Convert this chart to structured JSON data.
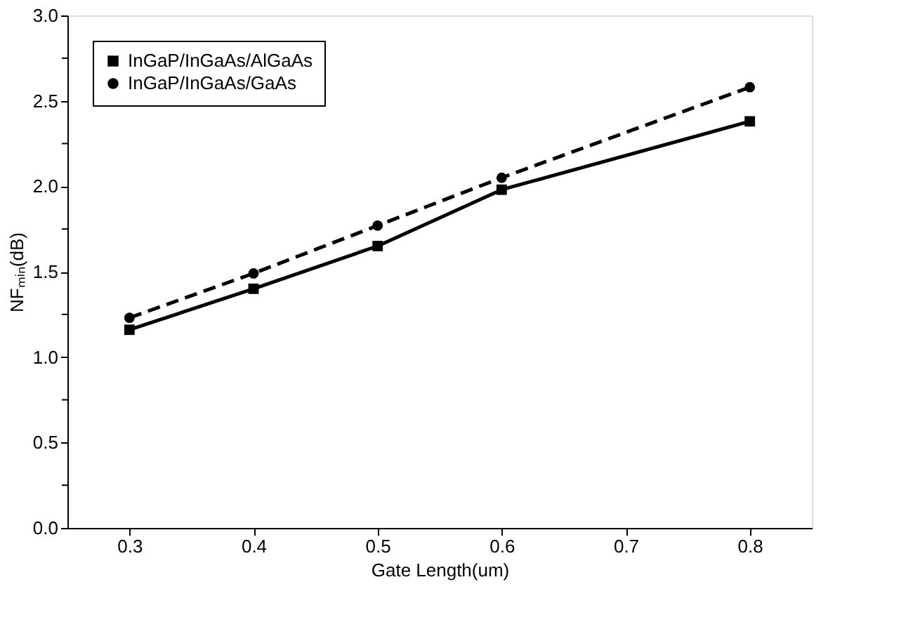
{
  "chart_data": {
    "type": "line",
    "xlabel": "Gate Length(um)",
    "ylabel": "NFₘᵢₙ(dB)",
    "x": [
      0.3,
      0.4,
      0.5,
      0.6,
      0.8
    ],
    "series": [
      {
        "name": "InGaP/InGaAs/AlGaAs",
        "color": "#000000",
        "values": [
          1.16,
          1.4,
          1.65,
          1.98,
          2.38
        ],
        "marker": "square",
        "line_style": "solid"
      },
      {
        "name": "InGaP/InGaAs/GaAs",
        "color": "#000000",
        "values": [
          1.23,
          1.49,
          1.77,
          2.05,
          2.58
        ],
        "marker": "circle",
        "line_style": "dashed"
      }
    ],
    "xlim": [
      0.25,
      0.85
    ],
    "xticks": [
      0.3,
      0.4,
      0.5,
      0.6,
      0.7,
      0.8
    ],
    "ylim": [
      0,
      3
    ],
    "yticks": [
      {
        "value": 0,
        "label": "0.0"
      },
      {
        "value": 0.25,
        "label": null
      },
      0.5,
      {
        "value": 0.75,
        "label": null
      },
      {
        "value": 1,
        "label": "1.0"
      },
      {
        "value": 1.25,
        "label": null
      },
      1.5,
      {
        "value": 1.75,
        "label": null
      },
      {
        "value": 2,
        "label": "2.0"
      },
      {
        "value": 2.25,
        "label": null
      },
      2.5,
      {
        "value": 2.75,
        "label": null
      },
      {
        "value": 3,
        "label": "3.0"
      }
    ],
    "grid": false,
    "legend": "top left"
  }
}
